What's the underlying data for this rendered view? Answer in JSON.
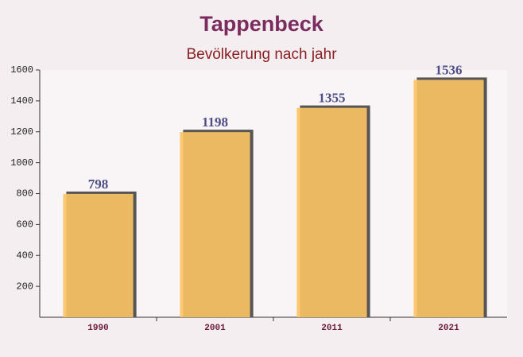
{
  "chart_data": {
    "type": "bar",
    "title": "Tappenbeck",
    "subtitle": "Bevölkerung nach jahr",
    "categories": [
      "1990",
      "2001",
      "2011",
      "2021"
    ],
    "values": [
      798,
      1198,
      1355,
      1536
    ],
    "color": "#fcc463",
    "ylim": [
      0,
      1600
    ],
    "yticks": [
      200,
      400,
      600,
      800,
      1000,
      1200,
      1400,
      1600
    ],
    "grid": false
  }
}
